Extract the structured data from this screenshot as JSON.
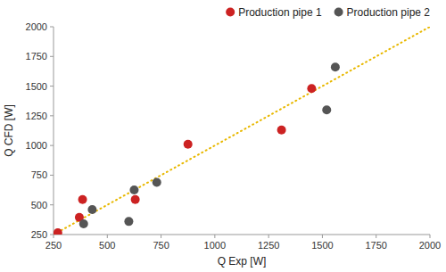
{
  "chart_data": {
    "type": "scatter",
    "xlabel": "Q Exp [W]",
    "ylabel": "Q CFD [W]",
    "series": [
      {
        "type": "line",
        "color": "#e8b800",
        "line_style": "dotted",
        "x": [
          250,
          2000
        ],
        "values": [
          250,
          2000
        ]
      },
      {
        "name": "Production pipe 1",
        "color": "#cc2222",
        "marker": "circle",
        "x": [
          270,
          370,
          385,
          630,
          875,
          1310,
          1450
        ],
        "values": [
          265,
          395,
          545,
          545,
          1010,
          1130,
          1480
        ]
      },
      {
        "name": "Production pipe 2",
        "color": "#555555",
        "marker": "circle",
        "x": [
          390,
          430,
          600,
          625,
          730,
          1520,
          1560
        ],
        "values": [
          340,
          460,
          360,
          625,
          690,
          1300,
          1660
        ]
      }
    ],
    "xlim": [
      250,
      2000
    ],
    "ylim": [
      250,
      2000
    ],
    "xticks": [
      250,
      500,
      750,
      1000,
      1250,
      1500,
      1750,
      2000
    ],
    "yticks": [
      250,
      500,
      750,
      1000,
      1250,
      1500,
      1750,
      2000
    ],
    "grid": false,
    "legend": "top right"
  }
}
